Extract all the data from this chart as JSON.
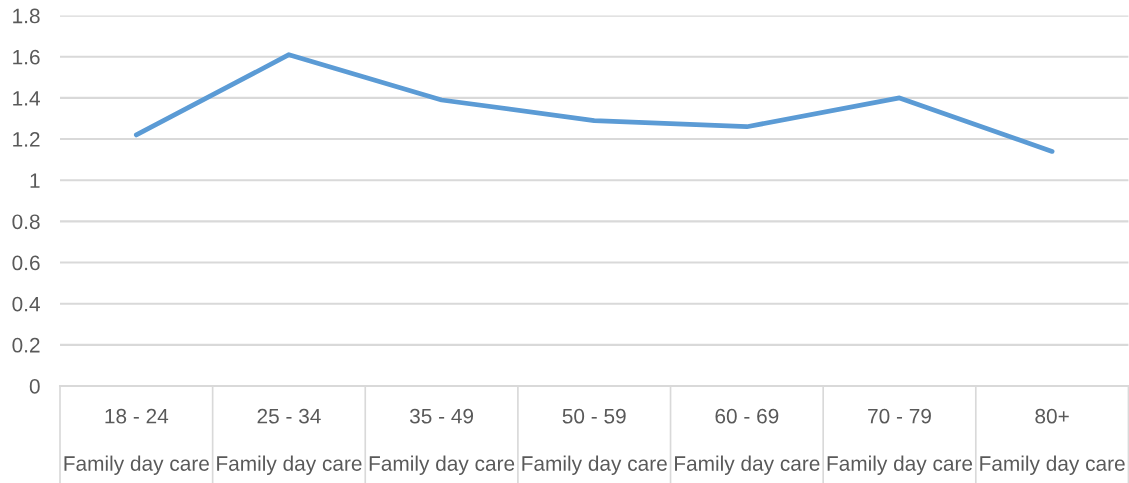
{
  "chart_data": {
    "type": "line",
    "categories": [
      "18 - 24\nFamily day care",
      "25 - 34\nFamily day care",
      "35 - 49\nFamily day care",
      "50 - 59\nFamily day care",
      "60 - 69\nFamily day care",
      "70 - 79\nFamily day care",
      "80+\nFamily day care"
    ],
    "series": [
      {
        "color": "#5b9bd5",
        "values": [
          1.22,
          1.61,
          1.39,
          1.29,
          1.26,
          1.4,
          1.14
        ]
      }
    ],
    "ylim": [
      0,
      1.8
    ],
    "yticks": [
      0,
      0.2,
      0.4,
      0.6,
      0.8,
      1,
      1.2,
      1.4,
      1.6,
      1.8
    ],
    "grid": "y",
    "marker": "none",
    "line_style": "solid"
  }
}
